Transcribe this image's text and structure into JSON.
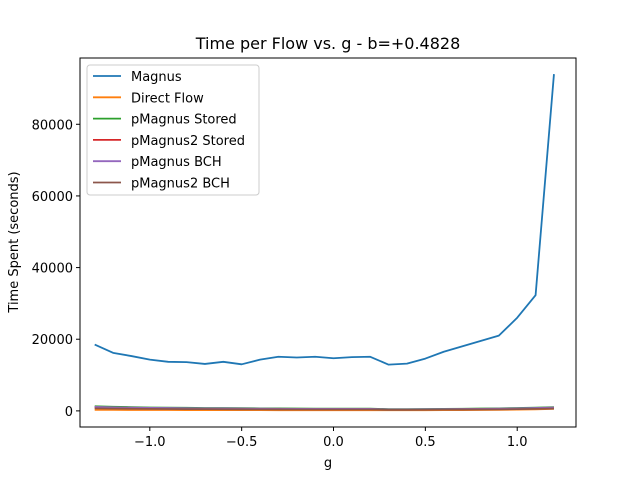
{
  "chart_data": {
    "type": "line",
    "title": "Time per Flow vs. g - b=+0.4828",
    "xlabel": "g",
    "ylabel": "Time Spent (seconds)",
    "xlim": [
      -1.38,
      1.32
    ],
    "ylim": [
      -4500,
      98500
    ],
    "xticks": [
      -1.0,
      -0.5,
      0.0,
      0.5,
      1.0
    ],
    "xtick_labels": [
      "−1.0",
      "−0.5",
      "0.0",
      "0.5",
      "1.0"
    ],
    "yticks": [
      0,
      20000,
      40000,
      60000,
      80000
    ],
    "ytick_labels": [
      "0",
      "20000",
      "40000",
      "60000",
      "80000"
    ],
    "grid": false,
    "legend": "top-left",
    "x": [
      -1.3,
      -1.2,
      -1.1,
      -1.0,
      -0.9,
      -0.8,
      -0.7,
      -0.6,
      -0.5,
      -0.4,
      -0.3,
      -0.2,
      -0.1,
      0.0,
      0.1,
      0.2,
      0.3,
      0.4,
      0.5,
      0.6,
      0.7,
      0.8,
      0.9,
      1.0,
      1.1,
      1.2
    ],
    "series": [
      {
        "name": "Magnus",
        "color": "#1f77b4",
        "values": [
          18500,
          16200,
          15300,
          14300,
          13700,
          13600,
          13100,
          13700,
          13000,
          14300,
          15100,
          14900,
          15100,
          14700,
          15000,
          15100,
          12900,
          13200,
          14600,
          16500,
          18000,
          19500,
          21000,
          26000,
          32300,
          94000
        ]
      },
      {
        "name": "Direct Flow",
        "color": "#ff7f0e",
        "values": [
          300,
          280,
          260,
          250,
          240,
          230,
          220,
          210,
          200,
          200,
          190,
          190,
          190,
          180,
          180,
          180,
          170,
          170,
          180,
          200,
          220,
          250,
          290,
          340,
          420,
          560
        ]
      },
      {
        "name": "pMagnus Stored",
        "color": "#2ca02c",
        "values": [
          1300,
          1150,
          1050,
          950,
          900,
          850,
          800,
          780,
          750,
          700,
          680,
          650,
          620,
          620,
          640,
          620,
          480,
          480,
          520,
          560,
          600,
          650,
          700,
          800,
          900,
          1050
        ]
      },
      {
        "name": "pMagnus2 Stored",
        "color": "#d62728",
        "values": [
          900,
          820,
          760,
          700,
          660,
          620,
          590,
          570,
          550,
          520,
          500,
          480,
          460,
          460,
          470,
          460,
          360,
          360,
          390,
          420,
          450,
          490,
          530,
          600,
          680,
          800
        ]
      },
      {
        "name": "pMagnus BCH",
        "color": "#9467bd",
        "values": [
          1100,
          980,
          900,
          820,
          780,
          740,
          700,
          680,
          650,
          610,
          590,
          560,
          540,
          540,
          550,
          540,
          420,
          420,
          460,
          490,
          530,
          570,
          620,
          700,
          790,
          920
        ]
      },
      {
        "name": "pMagnus2 BCH",
        "color": "#8c564b",
        "values": [
          700,
          640,
          600,
          560,
          530,
          500,
          480,
          460,
          440,
          420,
          400,
          390,
          380,
          380,
          380,
          380,
          300,
          300,
          320,
          350,
          370,
          400,
          430,
          490,
          550,
          650
        ]
      }
    ]
  }
}
